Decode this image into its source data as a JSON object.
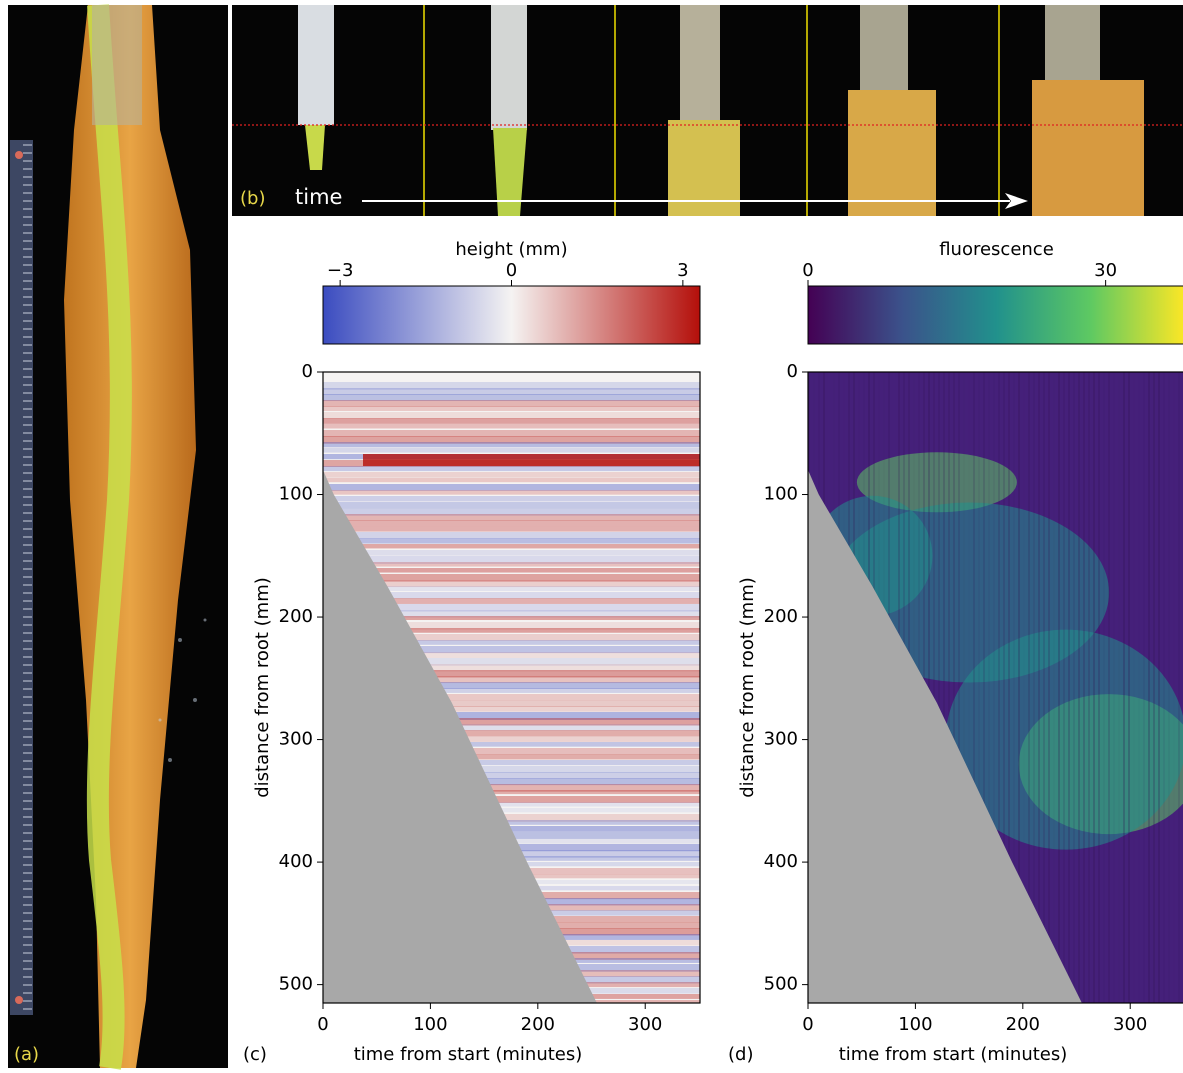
{
  "photo_labels": {
    "a": "(a)",
    "b": "(b)",
    "time": "time"
  },
  "chart_data": [
    {
      "type": "heatmap",
      "panel": "(c)",
      "colorbar_label": "height (mm)",
      "clim": [
        -3.3,
        3.3
      ],
      "cticks": [
        {
          "value": -3,
          "label": "−3"
        },
        0,
        3
      ],
      "colormap": [
        "#3b4cc0",
        "#f5f3f2",
        "#b40f0a"
      ],
      "xlabel": "time from start (minutes)",
      "ylabel": "distance from root (mm)",
      "xlim": [
        0,
        351
      ],
      "ylim": [
        0,
        515
      ],
      "yinvert": true,
      "xticks": [
        0,
        100,
        200,
        300
      ],
      "yticks": [
        0,
        100,
        200,
        300,
        400,
        500
      ]
    },
    {
      "type": "heatmap",
      "panel": "(d)",
      "colorbar_label": "fluorescence",
      "clim": [
        0,
        38
      ],
      "cticks": [
        0,
        30
      ],
      "colormap": [
        "#440154",
        "#3b528b",
        "#21918c",
        "#5ec962",
        "#fde725"
      ],
      "xlabel": "time from start (minutes)",
      "ylabel": "distance from root (mm)",
      "xlim": [
        0,
        351
      ],
      "ylim": [
        0,
        515
      ],
      "yinvert": true,
      "xticks": [
        0,
        100,
        200,
        300
      ],
      "yticks": [
        0,
        100,
        200,
        300,
        400,
        500
      ]
    }
  ]
}
